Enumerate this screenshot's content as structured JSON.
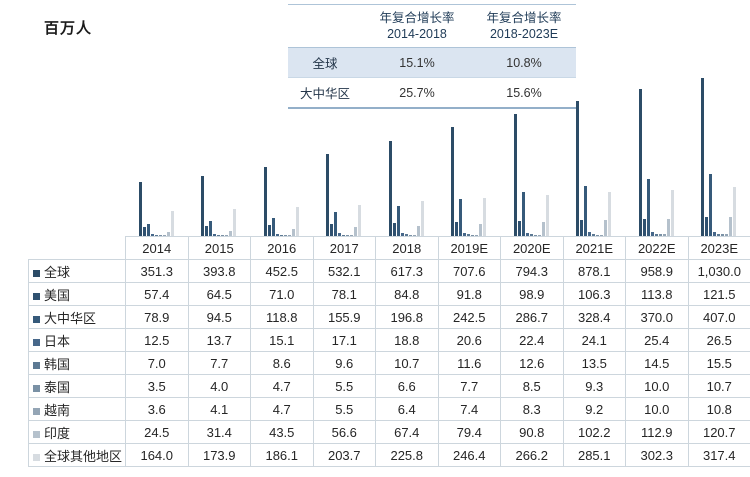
{
  "unit_label": "百万人",
  "cagr_table": {
    "headers": [
      {
        "line1": "年复合增长率",
        "line2": "2014-2018"
      },
      {
        "line1": "年复合增长率",
        "line2": "2018-2023E"
      }
    ],
    "rows": [
      {
        "label": "全球",
        "cagr_2014_2018": "15.1%",
        "cagr_2018_2023e": "10.8%",
        "highlighted": true
      },
      {
        "label": "大中华区",
        "cagr_2014_2018": "25.7%",
        "cagr_2018_2023e": "15.6%",
        "highlighted": false
      }
    ],
    "highlight_color": "#dbe5f1"
  },
  "data_table": {
    "year_headers": [
      "2014",
      "2015",
      "2016",
      "2017",
      "2018",
      "2019E",
      "2020E",
      "2021E",
      "2022E",
      "2023E"
    ],
    "rows": [
      {
        "label": "全球",
        "marker_color": "#2c4c67",
        "values": [
          "351.3",
          "393.8",
          "452.5",
          "532.1",
          "617.3",
          "707.6",
          "794.3",
          "878.1",
          "958.9",
          "1,030.0"
        ]
      },
      {
        "label": "美国",
        "marker_color": "#2f5170",
        "values": [
          "57.4",
          "64.5",
          "71.0",
          "78.1",
          "84.8",
          "91.8",
          "98.9",
          "106.3",
          "113.8",
          "121.5"
        ]
      },
      {
        "label": "大中华区",
        "marker_color": "#365a7a",
        "values": [
          "78.9",
          "94.5",
          "118.8",
          "155.9",
          "196.8",
          "242.5",
          "286.7",
          "328.4",
          "370.0",
          "407.0"
        ]
      },
      {
        "label": "日本",
        "marker_color": "#47688a",
        "values": [
          "12.5",
          "13.7",
          "15.1",
          "17.1",
          "18.8",
          "20.6",
          "22.4",
          "24.1",
          "25.4",
          "26.5"
        ]
      },
      {
        "label": "韩国",
        "marker_color": "#5c7993",
        "values": [
          "7.0",
          "7.7",
          "8.6",
          "9.6",
          "10.7",
          "11.6",
          "12.6",
          "13.5",
          "14.5",
          "15.5"
        ]
      },
      {
        "label": "泰国",
        "marker_color": "#7a91a5",
        "values": [
          "3.5",
          "4.0",
          "4.7",
          "5.5",
          "6.6",
          "7.7",
          "8.5",
          "9.3",
          "10.0",
          "10.7"
        ]
      },
      {
        "label": "越南",
        "marker_color": "#94a5b5",
        "values": [
          "3.6",
          "4.1",
          "4.7",
          "5.5",
          "6.4",
          "7.4",
          "8.3",
          "9.2",
          "10.0",
          "10.8"
        ]
      },
      {
        "label": "印度",
        "marker_color": "#b5c1cc",
        "values": [
          "24.5",
          "31.4",
          "43.5",
          "56.6",
          "67.4",
          "79.4",
          "90.8",
          "102.2",
          "112.9",
          "120.7"
        ]
      },
      {
        "label": "全球其他地区",
        "marker_color": "#d7dce1",
        "values": [
          "164.0",
          "173.9",
          "186.1",
          "203.7",
          "225.8",
          "246.4",
          "266.2",
          "285.1",
          "302.3",
          "317.4"
        ]
      }
    ]
  },
  "chart_data": {
    "type": "bar",
    "title": "",
    "ylabel": "百万人",
    "xlabel": "",
    "ylim": [
      0,
      1100
    ],
    "grid": false,
    "legend_position": "table-row-markers",
    "categories": [
      "2014",
      "2015",
      "2016",
      "2017",
      "2018",
      "2019E",
      "2020E",
      "2021E",
      "2022E",
      "2023E"
    ],
    "series": [
      {
        "name": "全球",
        "color": "#2c4c67",
        "values": [
          351.3,
          393.8,
          452.5,
          532.1,
          617.3,
          707.6,
          794.3,
          878.1,
          958.9,
          1030.0
        ]
      },
      {
        "name": "美国",
        "color": "#2f5170",
        "values": [
          57.4,
          64.5,
          71.0,
          78.1,
          84.8,
          91.8,
          98.9,
          106.3,
          113.8,
          121.5
        ]
      },
      {
        "name": "大中华区",
        "color": "#365a7a",
        "values": [
          78.9,
          94.5,
          118.8,
          155.9,
          196.8,
          242.5,
          286.7,
          328.4,
          370.0,
          407.0
        ]
      },
      {
        "name": "日本",
        "color": "#47688a",
        "values": [
          12.5,
          13.7,
          15.1,
          17.1,
          18.8,
          20.6,
          22.4,
          24.1,
          25.4,
          26.5
        ]
      },
      {
        "name": "韩国",
        "color": "#5c7993",
        "values": [
          7.0,
          7.7,
          8.6,
          9.6,
          10.7,
          11.6,
          12.6,
          13.5,
          14.5,
          15.5
        ]
      },
      {
        "name": "泰国",
        "color": "#7a91a5",
        "values": [
          3.5,
          4.0,
          4.7,
          5.5,
          6.6,
          7.7,
          8.5,
          9.3,
          10.0,
          10.7
        ]
      },
      {
        "name": "越南",
        "color": "#94a5b5",
        "values": [
          3.6,
          4.1,
          4.7,
          5.5,
          6.4,
          7.4,
          8.3,
          9.2,
          10.0,
          10.8
        ]
      },
      {
        "name": "印度",
        "color": "#b5c1cc",
        "values": [
          24.5,
          31.4,
          43.5,
          56.6,
          67.4,
          79.4,
          90.8,
          102.2,
          112.9,
          120.7
        ]
      },
      {
        "name": "全球其他地区",
        "color": "#d7dce1",
        "values": [
          164.0,
          173.9,
          186.1,
          203.7,
          225.8,
          246.4,
          266.2,
          285.1,
          302.3,
          317.4
        ]
      }
    ]
  }
}
